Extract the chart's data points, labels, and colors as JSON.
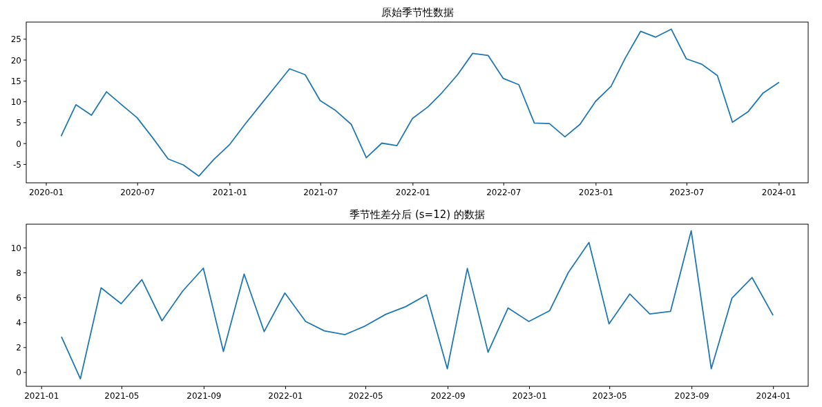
{
  "chart_data": [
    {
      "type": "line",
      "title": "原始季节性数据",
      "color": "#1f77b4",
      "x": [
        "2020-01-31",
        "2020-02-29",
        "2020-03-31",
        "2020-04-30",
        "2020-05-31",
        "2020-06-30",
        "2020-07-31",
        "2020-08-31",
        "2020-09-30",
        "2020-10-31",
        "2020-11-30",
        "2020-12-31",
        "2021-01-31",
        "2021-02-28",
        "2021-03-31",
        "2021-04-30",
        "2021-05-31",
        "2021-06-30",
        "2021-07-31",
        "2021-08-31",
        "2021-09-30",
        "2021-10-31",
        "2021-11-30",
        "2021-12-31",
        "2022-01-31",
        "2022-02-28",
        "2022-03-31",
        "2022-04-30",
        "2022-05-31",
        "2022-06-30",
        "2022-07-31",
        "2022-08-31",
        "2022-09-30",
        "2022-10-31",
        "2022-11-30",
        "2022-12-31",
        "2023-01-31",
        "2023-02-28",
        "2023-03-31",
        "2023-04-30",
        "2023-05-31",
        "2023-06-30",
        "2023-07-31",
        "2023-08-31",
        "2023-09-30",
        "2023-10-31",
        "2023-11-30",
        "2023-12-31"
      ],
      "values": [
        1.9,
        9.3,
        6.8,
        12.4,
        9.2,
        6.2,
        1.4,
        -3.7,
        -5.1,
        -7.8,
        -3.8,
        -0.3,
        4.6,
        8.8,
        13.4,
        17.9,
        16.5,
        10.3,
        7.9,
        4.6,
        -3.4,
        0.1,
        -0.5,
        6.0,
        8.8,
        12.2,
        16.5,
        21.6,
        21.1,
        15.6,
        14.1,
        4.9,
        4.8,
        1.6,
        4.6,
        10.1,
        13.7,
        20.4,
        26.9,
        25.5,
        27.4,
        20.3,
        19.0,
        16.3,
        5.1,
        7.6,
        12.1,
        14.6
      ],
      "xlim": [
        "2019-11-22",
        "2024-02-28"
      ],
      "ylim": [
        -9.4,
        29.1
      ],
      "xticks": [
        "2020-01",
        "2020-07",
        "2021-01",
        "2021-07",
        "2022-01",
        "2022-07",
        "2023-01",
        "2023-07",
        "2024-01"
      ],
      "yticks": [
        -5,
        0,
        5,
        10,
        15,
        20,
        25
      ]
    },
    {
      "type": "line",
      "title": "季节性差分后 (s=12) 的数据",
      "color": "#1f77b4",
      "x": [
        "2021-01-31",
        "2021-02-28",
        "2021-03-31",
        "2021-04-30",
        "2021-05-31",
        "2021-06-30",
        "2021-07-31",
        "2021-08-31",
        "2021-09-30",
        "2021-10-31",
        "2021-11-30",
        "2021-12-31",
        "2022-01-31",
        "2022-02-28",
        "2022-03-31",
        "2022-04-30",
        "2022-05-31",
        "2022-06-30",
        "2022-07-31",
        "2022-08-31",
        "2022-09-30",
        "2022-10-31",
        "2022-11-30",
        "2022-12-31",
        "2023-01-31",
        "2023-02-28",
        "2023-03-31",
        "2023-04-30",
        "2023-05-31",
        "2023-06-30",
        "2023-07-31",
        "2023-08-31",
        "2023-09-30",
        "2023-10-31",
        "2023-11-30",
        "2023-12-31"
      ],
      "values": [
        2.83,
        -0.51,
        6.79,
        5.52,
        7.45,
        4.15,
        6.53,
        8.37,
        1.69,
        7.9,
        3.28,
        6.38,
        4.09,
        3.34,
        3.04,
        3.73,
        4.67,
        5.29,
        6.23,
        0.3,
        8.35,
        1.63,
        5.18,
        4.09,
        4.95,
        8.01,
        10.43,
        3.9,
        6.3,
        4.69,
        4.9,
        11.37,
        0.3,
        5.97,
        7.62,
        4.63
      ],
      "xlim": [
        "2020-12-09",
        "2024-02-22"
      ],
      "ylim": [
        -1.11,
        11.9
      ],
      "xticks": [
        "2021-01",
        "2021-05",
        "2021-09",
        "2022-01",
        "2022-05",
        "2022-09",
        "2023-01",
        "2023-05",
        "2023-09",
        "2024-01"
      ],
      "yticks": [
        0,
        2,
        4,
        6,
        8,
        10
      ]
    }
  ]
}
